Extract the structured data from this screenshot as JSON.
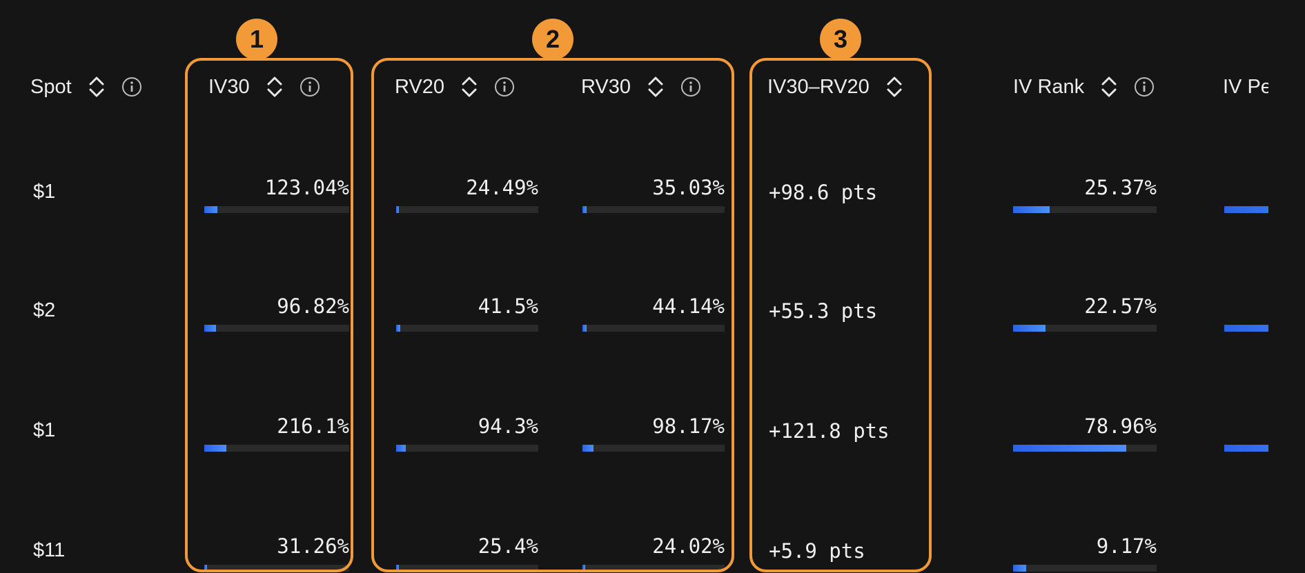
{
  "columns": {
    "spot": "Spot",
    "iv30": "IV30",
    "rv20": "RV20",
    "rv30": "RV30",
    "spread": "IV30–RV20",
    "iv_rank": "IV Rank",
    "iv_pct": "IV Pe"
  },
  "rows": [
    {
      "spot": "$1",
      "iv30": "123.04%",
      "iv30_fill": 0.09,
      "rv20": "24.49%",
      "rv20_fill": 0.02,
      "rv30": "35.03%",
      "rv30_fill": 0.03,
      "spread": "+98.6 pts",
      "iv_rank": "25.37%",
      "iv_rank_fill": 0.2537
    },
    {
      "spot": "$2",
      "iv30": "96.82%",
      "iv30_fill": 0.08,
      "rv20": "41.5%",
      "rv20_fill": 0.03,
      "rv30": "44.14%",
      "rv30_fill": 0.03,
      "spread": "+55.3 pts",
      "iv_rank": "22.57%",
      "iv_rank_fill": 0.2257
    },
    {
      "spot": "$1",
      "iv30": "216.1%",
      "iv30_fill": 0.15,
      "rv20": "94.3%",
      "rv20_fill": 0.07,
      "rv30": "98.17%",
      "rv30_fill": 0.08,
      "spread": "+121.8 pts",
      "iv_rank": "78.96%",
      "iv_rank_fill": 0.7896
    },
    {
      "spot": "$11",
      "iv30": "31.26%",
      "iv30_fill": 0.02,
      "rv20": "25.4%",
      "rv20_fill": 0.02,
      "rv30": "24.02%",
      "rv30_fill": 0.02,
      "spread": "+5.9 pts",
      "iv_rank": "9.17%",
      "iv_rank_fill": 0.0917
    }
  ],
  "callouts": [
    "1",
    "2",
    "3"
  ],
  "colors": {
    "accent": "#f29a38",
    "bar": "#2a64e6",
    "background": "#151515"
  },
  "icons": {
    "sort": "sort-updown-icon",
    "info": "info-icon"
  }
}
